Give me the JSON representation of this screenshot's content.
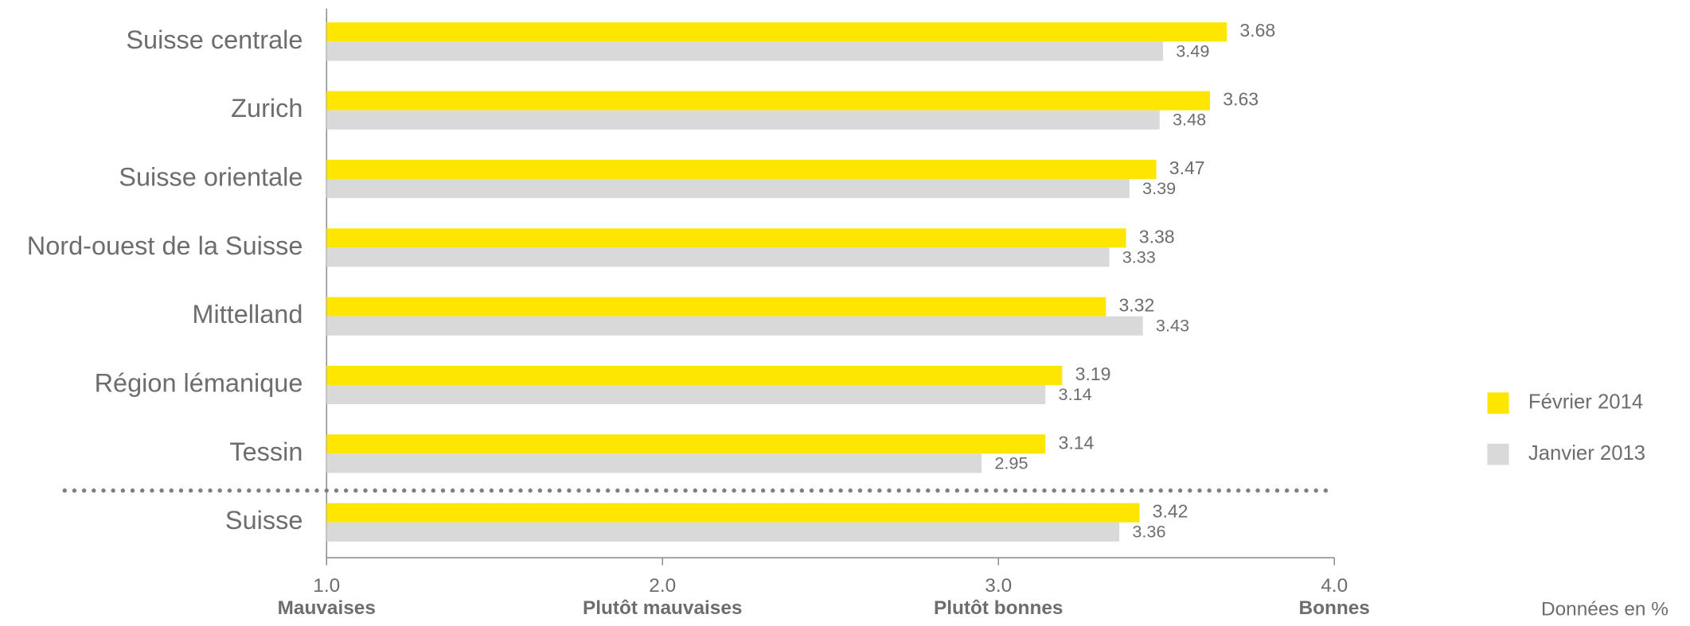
{
  "chart_data": {
    "type": "bar",
    "orientation": "horizontal",
    "categories": [
      "Suisse centrale",
      "Zurich",
      "Suisse orientale",
      "Nord-ouest de la Suisse",
      "Mittelland",
      "Région lémanique",
      "Tessin",
      "Suisse"
    ],
    "series": [
      {
        "name": "Février 2014",
        "color": "#ffe600",
        "values": [
          3.68,
          3.63,
          3.47,
          3.38,
          3.32,
          3.19,
          3.14,
          3.42
        ]
      },
      {
        "name": "Janvier 2013",
        "color": "#d9d9d9",
        "values": [
          3.49,
          3.48,
          3.39,
          3.33,
          3.43,
          3.14,
          2.95,
          3.36
        ]
      }
    ],
    "xlim": [
      1,
      4
    ],
    "xticks": [
      {
        "value": 1,
        "label": "1.0"
      },
      {
        "value": 2,
        "label": "2.0"
      },
      {
        "value": 3,
        "label": "3.0"
      },
      {
        "value": 4,
        "label": "4.0"
      }
    ],
    "xtick_sublabels": [
      "Mauvaises",
      "Plutôt mauvaises",
      "Plutôt bonnes",
      "Bonnes"
    ],
    "note": "Données en %",
    "legend": "right"
  }
}
